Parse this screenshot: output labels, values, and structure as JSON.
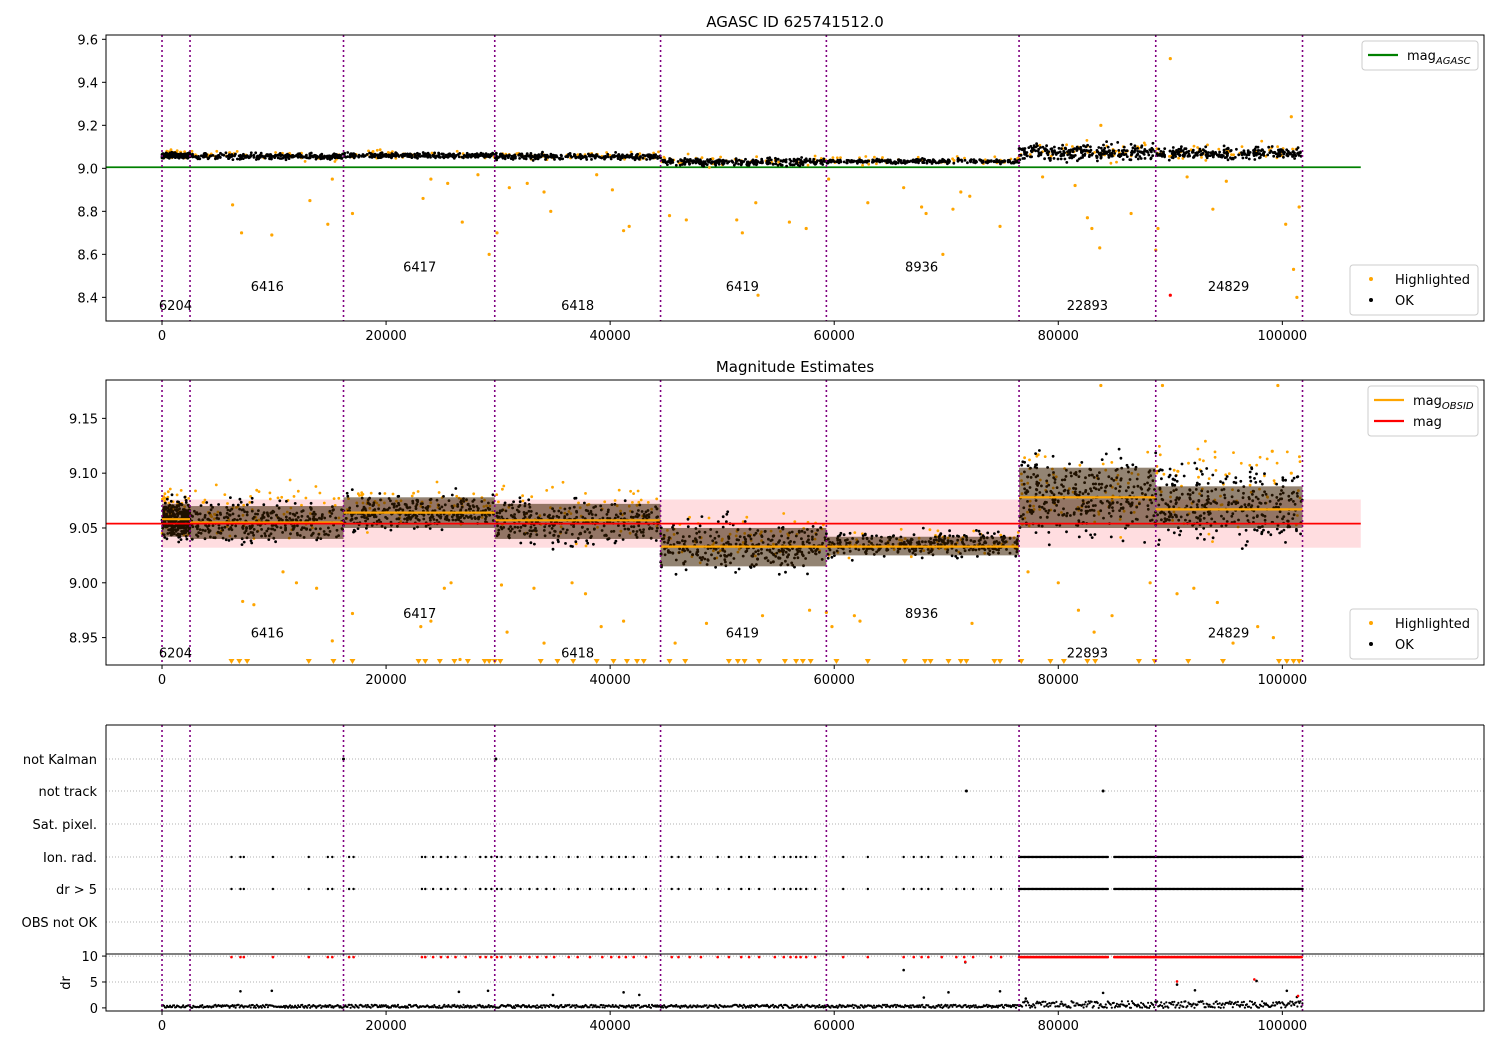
{
  "figure": {
    "background": "#ffffff",
    "obs_line_color": "#800080",
    "ok_color": "#000000",
    "highlight_color": "#ffa500",
    "agasc_line_color": "#008000",
    "mean_line_color": "#ff0000",
    "mean_band_color": "#ffdde0",
    "obs_mag_color": "#ffa500",
    "flag_color": "#ff0000"
  },
  "chart_data": [
    {
      "id": "top",
      "type": "scatter",
      "title": "AGASC ID 625741512.0",
      "xlim": [
        -5000,
        118000
      ],
      "ylim": [
        8.29,
        9.62
      ],
      "x_ticks": [
        0,
        20000,
        40000,
        60000,
        80000,
        100000
      ],
      "x_tick_labels": [
        "0",
        "20000",
        "40000",
        "60000",
        "80000",
        "100000"
      ],
      "y_ticks": [
        8.4,
        8.6,
        8.8,
        9.0,
        9.2,
        9.4,
        9.6
      ],
      "y_tick_labels": [
        "8.4",
        "8.6",
        "8.8",
        "9.0",
        "9.2",
        "9.4",
        "9.6"
      ],
      "obs_boundaries": [
        0,
        2500,
        16200,
        29700,
        44500,
        59300,
        76500,
        88700,
        101800
      ],
      "obs_labels": [
        {
          "text": "6204",
          "x": 1200,
          "y": 8.34
        },
        {
          "text": "6416",
          "x": 9400,
          "y": 8.43
        },
        {
          "text": "6417",
          "x": 23000,
          "y": 8.52
        },
        {
          "text": "6418",
          "x": 37100,
          "y": 8.34
        },
        {
          "text": "6419",
          "x": 51800,
          "y": 8.43
        },
        {
          "text": "8936",
          "x": 67800,
          "y": 8.52
        },
        {
          "text": "22893",
          "x": 82600,
          "y": 8.34
        },
        {
          "text": "24829",
          "x": 95200,
          "y": 8.43
        }
      ],
      "segments": [
        {
          "x0": 0,
          "x1": 2500,
          "y_lo": 9.04,
          "y_hi": 9.08
        },
        {
          "x0": 2500,
          "x1": 16200,
          "y_lo": 9.03,
          "y_hi": 9.08
        },
        {
          "x0": 16200,
          "x1": 29700,
          "y_lo": 9.04,
          "y_hi": 9.08
        },
        {
          "x0": 29700,
          "x1": 44500,
          "y_lo": 9.03,
          "y_hi": 9.08
        },
        {
          "x0": 44500,
          "x1": 59300,
          "y_lo": 9.0,
          "y_hi": 9.06
        },
        {
          "x0": 59300,
          "x1": 76500,
          "y_lo": 9.015,
          "y_hi": 9.05
        },
        {
          "x0": 76500,
          "x1": 88700,
          "y_lo": 9.01,
          "y_hi": 9.14
        },
        {
          "x0": 88700,
          "x1": 101800,
          "y_lo": 9.02,
          "y_hi": 9.12
        }
      ],
      "agasc_mag": 9.005,
      "highlighted_points": [
        [
          6300,
          8.83
        ],
        [
          7100,
          8.7
        ],
        [
          9800,
          8.69
        ],
        [
          13200,
          8.85
        ],
        [
          14800,
          8.74
        ],
        [
          15200,
          8.95
        ],
        [
          17000,
          8.79
        ],
        [
          23300,
          8.86
        ],
        [
          24000,
          8.95
        ],
        [
          25500,
          8.93
        ],
        [
          26800,
          8.75
        ],
        [
          28200,
          8.97
        ],
        [
          29200,
          8.6
        ],
        [
          29900,
          8.7
        ],
        [
          31000,
          8.91
        ],
        [
          32600,
          8.93
        ],
        [
          34100,
          8.89
        ],
        [
          34700,
          8.8
        ],
        [
          38800,
          8.97
        ],
        [
          40200,
          8.9
        ],
        [
          41200,
          8.71
        ],
        [
          41700,
          8.73
        ],
        [
          45300,
          8.78
        ],
        [
          46800,
          8.76
        ],
        [
          51300,
          8.76
        ],
        [
          51800,
          8.7
        ],
        [
          53000,
          8.84
        ],
        [
          56000,
          8.75
        ],
        [
          57500,
          8.72
        ],
        [
          59500,
          8.95
        ],
        [
          63000,
          8.84
        ],
        [
          66200,
          8.91
        ],
        [
          67800,
          8.82
        ],
        [
          68200,
          8.79
        ],
        [
          69700,
          8.6
        ],
        [
          70600,
          8.81
        ],
        [
          71300,
          8.89
        ],
        [
          72100,
          8.87
        ],
        [
          74800,
          8.73
        ],
        [
          78600,
          8.96
        ],
        [
          81500,
          8.92
        ],
        [
          82600,
          8.77
        ],
        [
          83000,
          8.72
        ],
        [
          83700,
          8.63
        ],
        [
          86500,
          8.79
        ],
        [
          88700,
          8.62
        ],
        [
          88900,
          8.72
        ],
        [
          91500,
          8.96
        ],
        [
          93800,
          8.81
        ],
        [
          95000,
          8.94
        ],
        [
          100300,
          8.74
        ],
        [
          101000,
          8.53
        ],
        [
          101500,
          8.82
        ],
        [
          90000,
          9.51
        ],
        [
          100800,
          9.24
        ],
        [
          83800,
          9.2
        ],
        [
          53200,
          8.41
        ],
        [
          101300,
          8.4
        ]
      ],
      "red_points": [
        [
          90000,
          8.41
        ]
      ],
      "legends": [
        {
          "position": "upper-right",
          "entries": [
            {
              "label": "mag",
              "sub": "AGASC",
              "color": "#008000",
              "kind": "line"
            }
          ]
        },
        {
          "position": "lower-right",
          "entries": [
            {
              "label": "Highlighted",
              "color": "#ffa500",
              "kind": "dot"
            },
            {
              "label": "OK",
              "color": "#000000",
              "kind": "dot"
            }
          ]
        }
      ]
    },
    {
      "id": "middle",
      "type": "scatter",
      "title": "Magnitude Estimates",
      "xlim": [
        -5000,
        118000
      ],
      "ylim": [
        8.925,
        9.185
      ],
      "x_ticks": [
        0,
        20000,
        40000,
        60000,
        80000,
        100000
      ],
      "x_tick_labels": [
        "0",
        "20000",
        "40000",
        "60000",
        "80000",
        "100000"
      ],
      "y_ticks": [
        8.95,
        9.0,
        9.05,
        9.1,
        9.15
      ],
      "y_tick_labels": [
        "8.95",
        "9.00",
        "9.05",
        "9.10",
        "9.15"
      ],
      "obs_boundaries": [
        0,
        2500,
        16200,
        29700,
        44500,
        59300,
        76500,
        88700,
        101800
      ],
      "obs_labels": [
        {
          "text": "6204",
          "x": 1200,
          "y": 8.932
        },
        {
          "text": "6416",
          "x": 9400,
          "y": 8.95
        },
        {
          "text": "6417",
          "x": 23000,
          "y": 8.968
        },
        {
          "text": "6418",
          "x": 37100,
          "y": 8.932
        },
        {
          "text": "6419",
          "x": 51800,
          "y": 8.95
        },
        {
          "text": "8936",
          "x": 67800,
          "y": 8.968
        },
        {
          "text": "22893",
          "x": 82600,
          "y": 8.932
        },
        {
          "text": "24829",
          "x": 95200,
          "y": 8.95
        }
      ],
      "mag_mean": 9.054,
      "mag_band": [
        9.032,
        9.076
      ],
      "segments": [
        {
          "x0": 0,
          "x1": 2500,
          "mag": 9.058,
          "y_lo": 9.03,
          "y_hi": 9.085,
          "hi_top": 9.1,
          "box_lo": 9.042,
          "box_hi": 9.072
        },
        {
          "x0": 2500,
          "x1": 16200,
          "mag": 9.055,
          "y_lo": 9.023,
          "y_hi": 9.088,
          "hi_top": 9.11,
          "box_lo": 9.04,
          "box_hi": 9.07
        },
        {
          "x0": 16200,
          "x1": 29700,
          "mag": 9.064,
          "y_lo": 9.038,
          "y_hi": 9.09,
          "hi_top": 9.105,
          "box_lo": 9.05,
          "box_hi": 9.078
        },
        {
          "x0": 29700,
          "x1": 44500,
          "mag": 9.057,
          "y_lo": 9.02,
          "y_hi": 9.09,
          "hi_top": 9.11,
          "box_lo": 9.04,
          "box_hi": 9.072
        },
        {
          "x0": 44500,
          "x1": 59300,
          "mag": 9.033,
          "y_lo": 8.995,
          "y_hi": 9.073,
          "hi_top": 9.085,
          "box_lo": 9.015,
          "box_hi": 9.05
        },
        {
          "x0": 59300,
          "x1": 76500,
          "mag": 9.033,
          "y_lo": 9.015,
          "y_hi": 9.055,
          "hi_top": 9.058,
          "box_lo": 9.025,
          "box_hi": 9.042
        },
        {
          "x0": 76500,
          "x1": 88700,
          "mag": 9.078,
          "y_lo": 9.015,
          "y_hi": 9.145,
          "hi_top": 9.15,
          "box_lo": 9.05,
          "box_hi": 9.105
        },
        {
          "x0": 88700,
          "x1": 101800,
          "mag": 9.067,
          "y_lo": 9.015,
          "y_hi": 9.13,
          "hi_top": 9.16,
          "box_lo": 9.05,
          "box_hi": 9.088
        }
      ],
      "highlighted_points": [
        [
          7200,
          8.983
        ],
        [
          8200,
          8.98
        ],
        [
          10800,
          9.01
        ],
        [
          12000,
          9.0
        ],
        [
          13800,
          8.995
        ],
        [
          15200,
          8.947
        ],
        [
          17000,
          8.972
        ],
        [
          23100,
          8.96
        ],
        [
          24000,
          8.965
        ],
        [
          25200,
          8.995
        ],
        [
          25800,
          9.0
        ],
        [
          26600,
          8.93
        ],
        [
          30300,
          8.998
        ],
        [
          30800,
          8.955
        ],
        [
          33200,
          8.995
        ],
        [
          34100,
          8.945
        ],
        [
          36600,
          9.0
        ],
        [
          37800,
          8.99
        ],
        [
          39200,
          8.96
        ],
        [
          41200,
          8.965
        ],
        [
          45800,
          8.945
        ],
        [
          48600,
          8.963
        ],
        [
          53600,
          8.97
        ],
        [
          57800,
          8.975
        ],
        [
          59300,
          8.973
        ],
        [
          59800,
          8.96
        ],
        [
          61800,
          8.97
        ],
        [
          62300,
          8.965
        ],
        [
          72300,
          8.963
        ],
        [
          80000,
          9.0
        ],
        [
          81800,
          8.975
        ],
        [
          83200,
          8.955
        ],
        [
          84800,
          8.97
        ],
        [
          88200,
          9.0
        ],
        [
          90600,
          8.99
        ],
        [
          92100,
          8.995
        ],
        [
          94200,
          8.982
        ],
        [
          95600,
          8.945
        ],
        [
          97800,
          8.96
        ],
        [
          99200,
          8.95
        ],
        [
          100800,
          9.1
        ],
        [
          83800,
          9.18
        ],
        [
          89300,
          9.18
        ],
        [
          99600,
          9.18
        ],
        [
          99100,
          9.12
        ],
        [
          77300,
          9.01
        ]
      ],
      "floor_markers": [
        6200,
        6900,
        7600,
        13100,
        15300,
        17000,
        22900,
        23500,
        24800,
        26100,
        27300,
        28800,
        29200,
        29700,
        30200,
        33800,
        35300,
        36700,
        38800,
        40300,
        41500,
        42400,
        43000,
        45300,
        46700,
        50600,
        51400,
        52000,
        53300,
        55600,
        56600,
        57200,
        57900,
        60200,
        63000,
        66300,
        68100,
        68600,
        70200,
        71300,
        71800,
        74300,
        74800,
        76700,
        79300,
        80500,
        82600,
        83300,
        87200,
        88600,
        91600,
        94700,
        99700,
        100400,
        101000,
        101500
      ],
      "legends": [
        {
          "position": "upper-right",
          "entries": [
            {
              "label": "mag",
              "sub": "OBSID",
              "color": "#ffa500",
              "kind": "line"
            },
            {
              "label": "mag",
              "sub": "",
              "color": "#ff0000",
              "kind": "line"
            }
          ]
        },
        {
          "position": "lower-right",
          "entries": [
            {
              "label": "Highlighted",
              "color": "#ffa500",
              "kind": "dot"
            },
            {
              "label": "OK",
              "color": "#000000",
              "kind": "dot"
            }
          ]
        }
      ]
    },
    {
      "id": "flags",
      "type": "scatter",
      "xlim": [
        -5000,
        118000
      ],
      "categories": [
        "OBS not OK",
        "dr > 5",
        "Ion. rad.",
        "Sat. pixel.",
        "not track",
        "not Kalman"
      ],
      "obs_boundaries": [
        0,
        2500,
        16200,
        29700,
        44500,
        59300,
        76500,
        88700,
        101800
      ],
      "sparse_flag_x": [
        6200,
        7000,
        7300,
        9900,
        13100,
        14800,
        15200,
        16700,
        17100,
        23200,
        23500,
        24200,
        24900,
        25500,
        26200,
        27100,
        28400,
        28900,
        29400,
        29900,
        30300,
        31100,
        32000,
        32800,
        33500,
        34300,
        35000,
        36300,
        37100,
        38200,
        39300,
        40100,
        40800,
        41400,
        42100,
        43200,
        45500,
        46100,
        47100,
        48100,
        49600,
        50600,
        51700,
        52400,
        53300,
        54700,
        55500,
        56100,
        56600,
        57000,
        57500,
        58300,
        60800,
        63000,
        66200,
        67100,
        67800,
        68400,
        69600,
        70900,
        71600,
        72400,
        74000,
        74900
      ],
      "dense_flag_ranges": [
        [
          76500,
          84500
        ],
        [
          85000,
          101800
        ]
      ],
      "not_track_points": [
        [
          71800,
          "not track"
        ],
        [
          84000,
          "not track"
        ],
        [
          16200,
          "not Kalman"
        ],
        [
          29800,
          "not Kalman"
        ]
      ]
    },
    {
      "id": "dr",
      "type": "scatter",
      "xlim": [
        -5000,
        118000
      ],
      "ylim": [
        -0.6,
        10.4
      ],
      "ylabel": "dr",
      "x_ticks": [
        0,
        20000,
        40000,
        60000,
        80000,
        100000
      ],
      "x_tick_labels": [
        "0",
        "20000",
        "40000",
        "60000",
        "80000",
        "100000"
      ],
      "y_ticks": [
        0,
        5,
        10
      ],
      "y_tick_labels": [
        "0",
        "5",
        "10"
      ],
      "obs_boundaries": [
        0,
        2500,
        16200,
        29700,
        44500,
        59300,
        76500,
        88700,
        101800
      ],
      "outliers": [
        [
          7000,
          3.2
        ],
        [
          9800,
          3.3
        ],
        [
          26500,
          3.1
        ],
        [
          29100,
          3.3
        ],
        [
          34900,
          2.5
        ],
        [
          41200,
          3.0
        ],
        [
          42600,
          2.5
        ],
        [
          66200,
          7.3
        ],
        [
          71700,
          8.8
        ],
        [
          77100,
          1.8
        ],
        [
          84000,
          2.9
        ],
        [
          90600,
          4.5
        ],
        [
          92200,
          3.4
        ],
        [
          97700,
          5.2
        ],
        [
          100400,
          3.3
        ],
        [
          101300,
          2.1
        ],
        [
          68000,
          2.0
        ],
        [
          70200,
          3.0
        ],
        [
          74800,
          3.2
        ]
      ],
      "red_outliers": [
        [
          90600,
          5.1
        ],
        [
          101400,
          2.3
        ],
        [
          71700,
          8.9
        ],
        [
          97500,
          5.5
        ]
      ]
    }
  ]
}
